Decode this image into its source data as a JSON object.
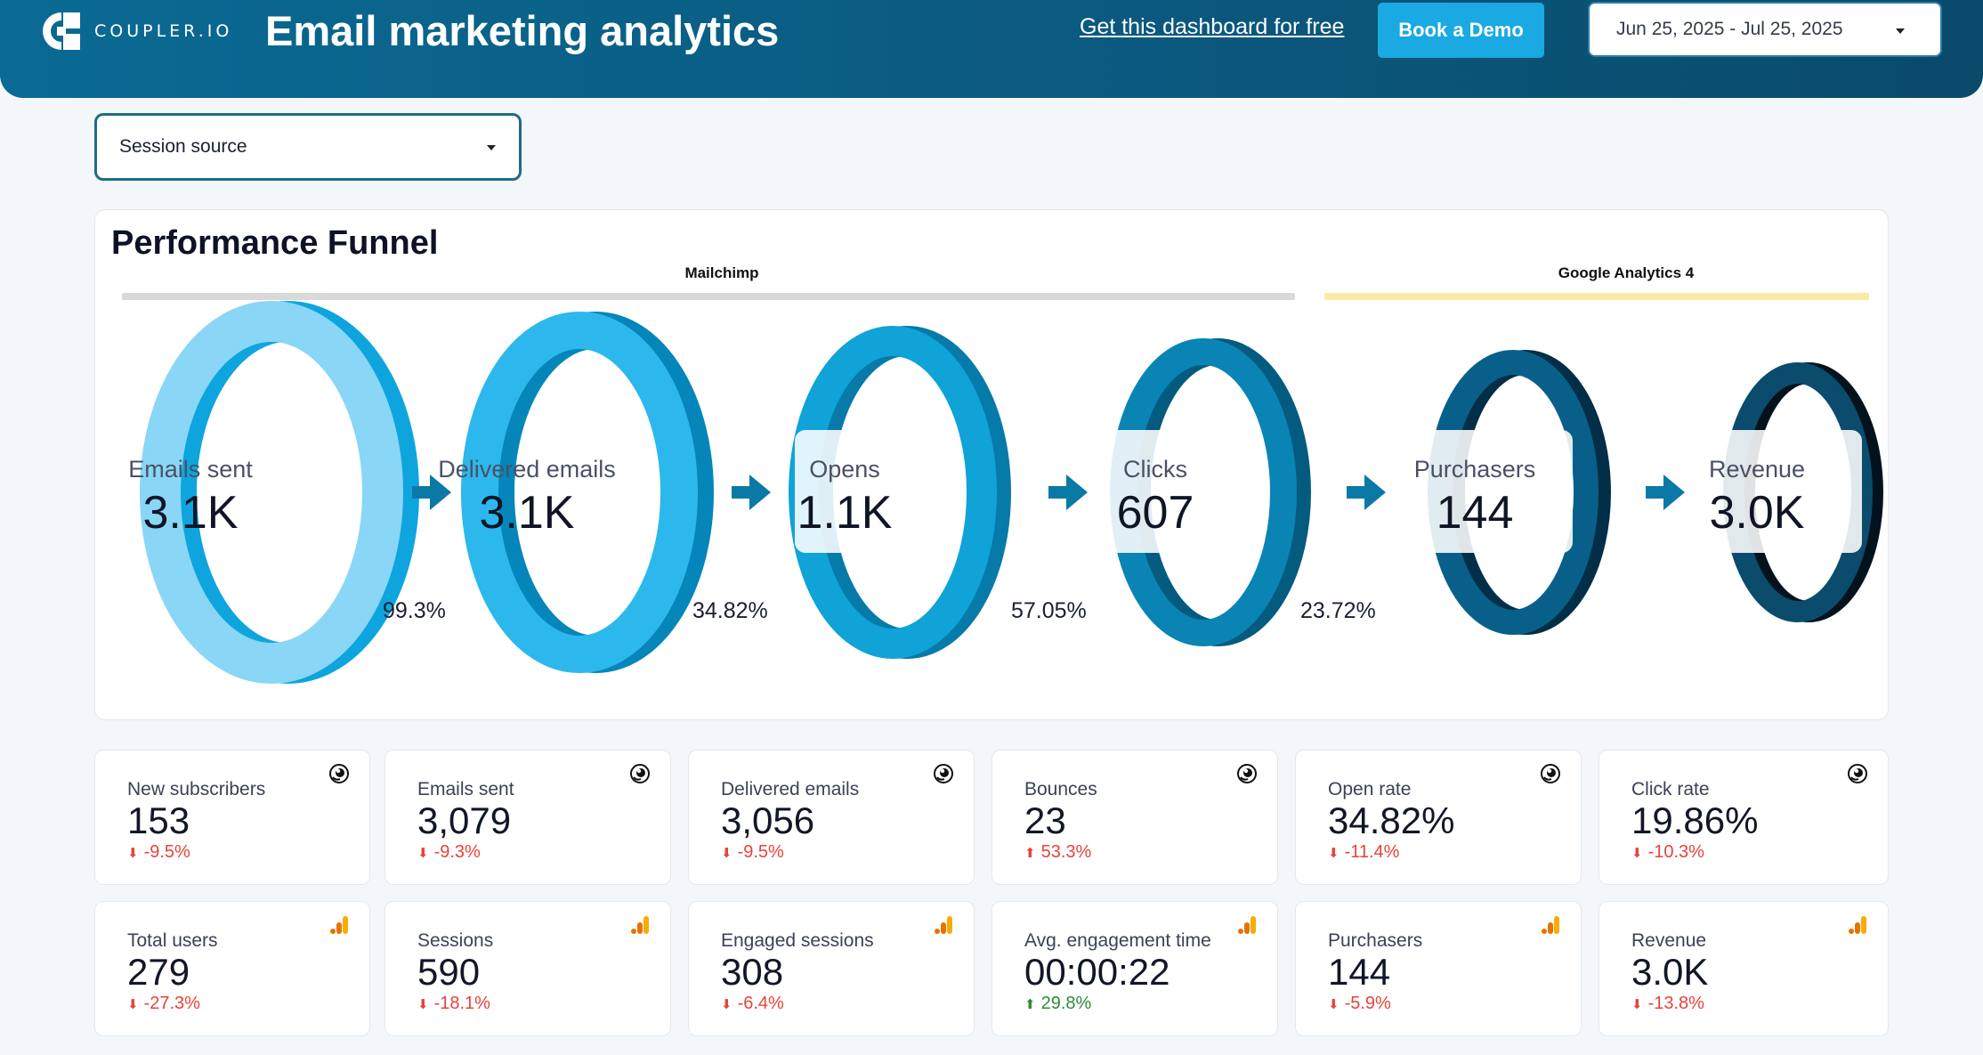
{
  "brand": {
    "logo_text": "COUPLER.IO"
  },
  "header": {
    "title": "Email marketing analytics",
    "get_link": "Get this dashboard for free",
    "demo_button": "Book a Demo",
    "date_range": "Jun 25, 2025 - Jul 25, 2025"
  },
  "filter": {
    "session_source_label": "Session source"
  },
  "funnel": {
    "title": "Performance Funnel",
    "sources": [
      {
        "name": "Mailchimp",
        "color": "#d9d9d9"
      },
      {
        "name": "Google Analytics 4",
        "color": "#fbe9a7"
      }
    ],
    "stages": [
      {
        "label": "Emails sent",
        "value": "3.1K",
        "front": "#8ad6f6",
        "back": "#0ea5de",
        "wide": true
      },
      {
        "label": "Delivered emails",
        "value": "3.1K",
        "front": "#2cb8ec",
        "back": "#0486ba",
        "wide": true
      },
      {
        "label": "Opens",
        "value": "1.1K",
        "front": "#0fa3d8",
        "back": "#067aa9",
        "wide": false
      },
      {
        "label": "Clicks",
        "value": "607",
        "front": "#0a84b4",
        "back": "#045b80",
        "wide": false
      },
      {
        "label": "Purchasers",
        "value": "144",
        "front": "#08608a",
        "back": "#022f47",
        "wide": false
      },
      {
        "label": "Revenue",
        "value": "3.0K",
        "front": "#0b4b6c",
        "back": "#02131e",
        "wide": false
      }
    ],
    "conversion_rates": [
      "99.3%",
      "34.82%",
      "57.05%",
      "23.72%"
    ]
  },
  "kpi_rows": [
    [
      {
        "label": "New subscribers",
        "value": "153",
        "delta": "-9.5%",
        "direction": "down",
        "source_icon": "mailchimp-icon"
      },
      {
        "label": "Emails sent",
        "value": "3,079",
        "delta": "-9.3%",
        "direction": "down",
        "source_icon": "mailchimp-icon"
      },
      {
        "label": "Delivered emails",
        "value": "3,056",
        "delta": "-9.5%",
        "direction": "down",
        "source_icon": "mailchimp-icon"
      },
      {
        "label": "Bounces",
        "value": "23",
        "delta": "53.3%",
        "direction": "up-bad",
        "source_icon": "mailchimp-icon"
      },
      {
        "label": "Open rate",
        "value": "34.82%",
        "delta": "-11.4%",
        "direction": "down",
        "source_icon": "mailchimp-icon"
      },
      {
        "label": "Click rate",
        "value": "19.86%",
        "delta": "-10.3%",
        "direction": "down",
        "source_icon": "mailchimp-icon"
      }
    ],
    [
      {
        "label": "Total users",
        "value": "279",
        "delta": "-27.3%",
        "direction": "down",
        "source_icon": "google-analytics-icon"
      },
      {
        "label": "Sessions",
        "value": "590",
        "delta": "-18.1%",
        "direction": "down",
        "source_icon": "google-analytics-icon"
      },
      {
        "label": "Engaged sessions",
        "value": "308",
        "delta": "-6.4%",
        "direction": "down",
        "source_icon": "google-analytics-icon"
      },
      {
        "label": "Avg. engagement time",
        "value": "00:00:22",
        "delta": "29.8%",
        "direction": "up",
        "source_icon": "google-analytics-icon"
      },
      {
        "label": "Purchasers",
        "value": "144",
        "delta": "-5.9%",
        "direction": "down",
        "source_icon": "google-analytics-icon"
      },
      {
        "label": "Revenue",
        "value": "3.0K",
        "delta": "-13.8%",
        "direction": "down",
        "source_icon": "google-analytics-icon"
      }
    ]
  ]
}
